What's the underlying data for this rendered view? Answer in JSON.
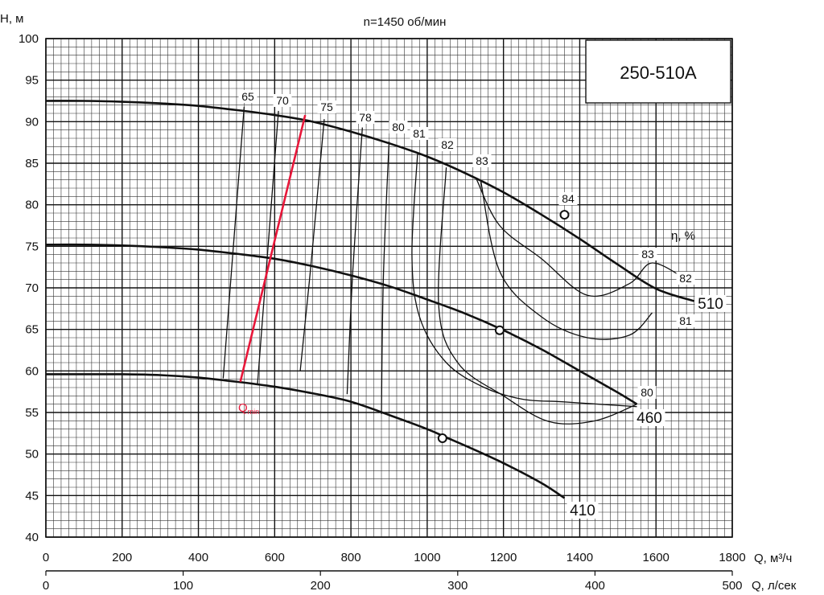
{
  "chart_data": {
    "type": "line",
    "title": "n=1450 об/мин",
    "model": "250-510A",
    "ylabel": "H, м",
    "xlabel": "Q, м³/ч",
    "x2label": "Q, л/сек",
    "efficiency_label": "η, %",
    "qmin_main": "Q",
    "qmin_sub": "min",
    "xlim": [
      0,
      1800
    ],
    "ylim": [
      40,
      100
    ],
    "x_ticks": [
      "0",
      "200",
      "400",
      "600",
      "800",
      "1000",
      "1200",
      "1400",
      "1600",
      "1800"
    ],
    "y_ticks": [
      "40",
      "45",
      "50",
      "55",
      "60",
      "65",
      "70",
      "75",
      "80",
      "85",
      "90",
      "95",
      "100"
    ],
    "x2_ticks": [
      "0",
      "100",
      "200",
      "300",
      "400",
      "500"
    ],
    "grid": true,
    "head_curves": [
      {
        "name": "510",
        "x": [
          0,
          100,
          200,
          300,
          400,
          500,
          600,
          700,
          800,
          900,
          1000,
          1100,
          1200,
          1300,
          1400,
          1500,
          1600,
          1700
        ],
        "y": [
          92.5,
          92.5,
          92.4,
          92.2,
          91.9,
          91.4,
          90.8,
          90.0,
          88.8,
          87.4,
          85.8,
          83.8,
          81.5,
          78.8,
          75.9,
          72.8,
          69.9,
          68.4
        ]
      },
      {
        "name": "460",
        "x": [
          0,
          100,
          200,
          300,
          400,
          500,
          600,
          700,
          800,
          900,
          1000,
          1100,
          1200,
          1300,
          1400,
          1500,
          1550
        ],
        "y": [
          75.2,
          75.2,
          75.1,
          74.9,
          74.6,
          74.1,
          73.5,
          72.6,
          71.5,
          70.2,
          68.6,
          66.9,
          64.9,
          62.6,
          60.0,
          57.4,
          56.0
        ]
      },
      {
        "name": "410",
        "x": [
          0,
          100,
          200,
          300,
          400,
          500,
          600,
          700,
          800,
          900,
          1000,
          1050,
          1100,
          1200,
          1300,
          1360
        ],
        "y": [
          59.6,
          59.6,
          59.6,
          59.5,
          59.2,
          58.7,
          58.1,
          57.3,
          56.3,
          54.7,
          53.0,
          52.0,
          51.0,
          48.9,
          46.5,
          44.7
        ]
      }
    ],
    "operating_points": [
      {
        "x": 1360,
        "y": 78.8
      },
      {
        "x": 1190,
        "y": 64.9
      },
      {
        "x": 1040,
        "y": 51.9
      }
    ],
    "iso_efficiency": [
      {
        "label": "65",
        "x": [
          520,
          465
        ],
        "y": [
          91.8,
          59.1
        ]
      },
      {
        "label": "70",
        "x": [
          610,
          555
        ],
        "y": [
          91.3,
          58.4
        ]
      },
      {
        "label": "75",
        "x": [
          730,
          695,
          667
        ],
        "y": [
          90.3,
          72.7,
          60.0
        ]
      },
      {
        "label": "78",
        "x": [
          830,
          805,
          790
        ],
        "y": [
          89.3,
          72.1,
          57.2
        ]
      },
      {
        "label": "80",
        "x": [
          900,
          885,
          880
        ],
        "y": [
          87.6,
          71.1,
          54.8
        ]
      },
      {
        "label": "81",
        "x": [
          975,
          960,
          980,
          1050,
          1150,
          1250,
          1350,
          1450,
          1550
        ],
        "y": [
          86.3,
          74.0,
          66.5,
          61.0,
          58.0,
          56.6,
          56.3,
          56.0,
          55.7
        ]
      },
      {
        "label": "82",
        "x": [
          1050,
          1030,
          1080,
          1200,
          1320,
          1440,
          1550
        ],
        "y": [
          84.5,
          68.0,
          61.0,
          57.0,
          53.9,
          54.0,
          56.0
        ]
      },
      {
        "label": "83",
        "x": [
          1140,
          1190,
          1300,
          1420,
          1530,
          1590
        ],
        "y": [
          83.0,
          72.0,
          66.5,
          64.0,
          64.3,
          67.0
        ]
      },
      {
        "label": "84",
        "x": [
          1130,
          1190,
          1300,
          1420,
          1530,
          1590,
          1680
        ],
        "y": [
          83.0,
          77.5,
          73.5,
          69.1,
          70.5,
          73.0,
          71.0
        ]
      }
    ],
    "eff_labels": [
      "65",
      "70",
      "75",
      "78",
      "80",
      "81",
      "82",
      "83",
      "84",
      "83",
      "82",
      "81",
      "80"
    ],
    "qmin_line": {
      "x": [
        510,
        680
      ],
      "y": [
        58.7,
        90.8
      ]
    }
  }
}
